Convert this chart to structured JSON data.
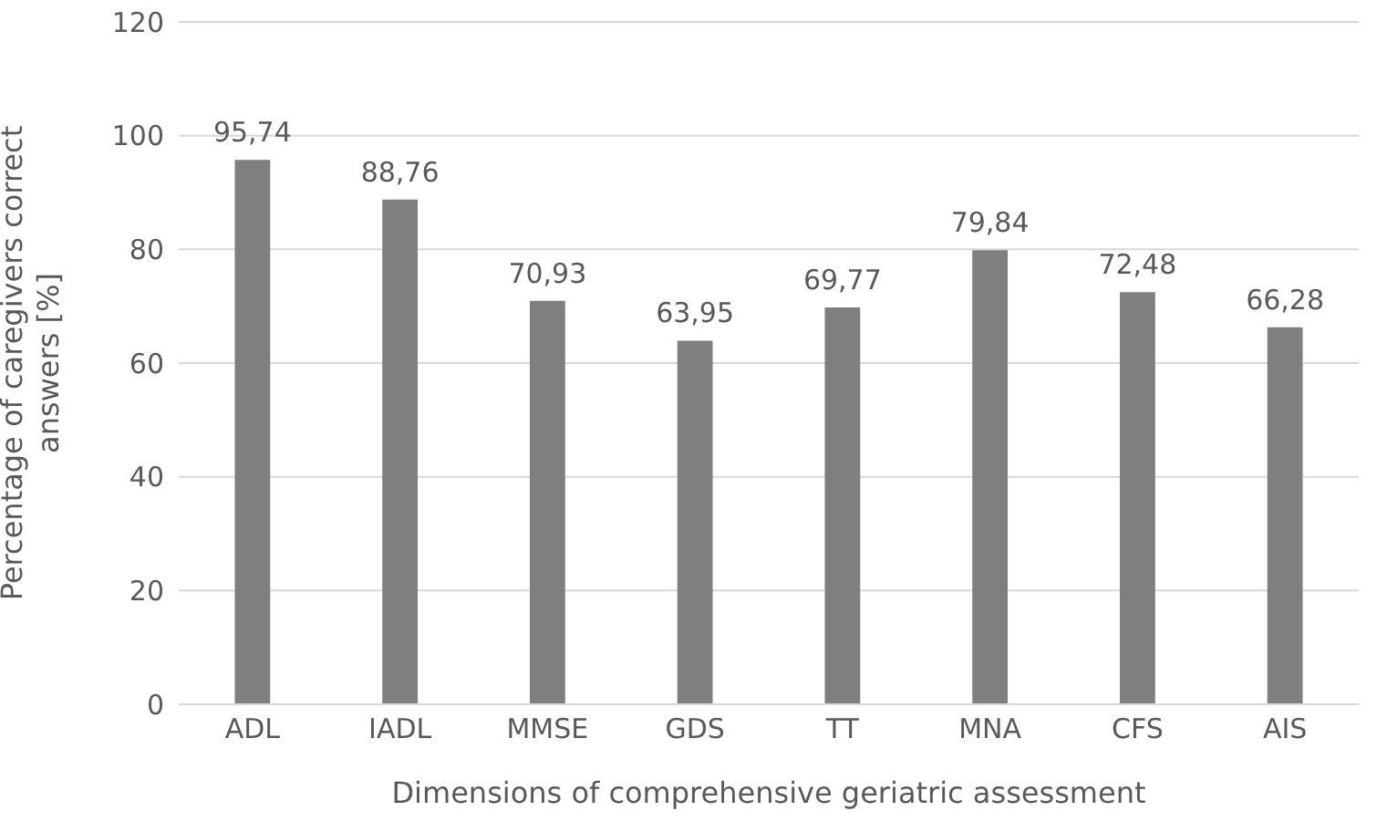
{
  "chart_data": {
    "type": "bar",
    "xlabel": "Dimensions of comprehensive geriatric assessment",
    "ylabel": "Percentage of caregivers correct answers [%]",
    "categories": [
      "ADL",
      "IADL",
      "MMSE",
      "GDS",
      "TT",
      "MNA",
      "CFS",
      "AIS"
    ],
    "values": [
      95.74,
      88.76,
      70.93,
      63.95,
      69.77,
      79.84,
      72.48,
      66.28
    ],
    "value_labels": [
      "95,74",
      "88,76",
      "70,93",
      "63,95",
      "69,77",
      "79,84",
      "72,48",
      "66,28"
    ],
    "color": "#7f7f7f",
    "ylim": [
      0,
      120
    ],
    "yticks": [
      0,
      20,
      40,
      60,
      80,
      100,
      120
    ],
    "grid": "y"
  }
}
